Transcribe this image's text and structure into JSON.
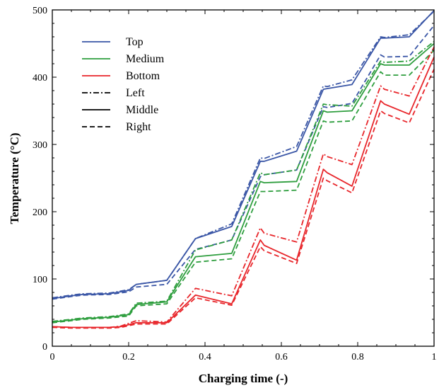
{
  "chart_data": {
    "type": "line",
    "xlabel": "Charging time (-)",
    "ylabel": "Temperature (°C)",
    "xlim": [
      0,
      1
    ],
    "ylim": [
      0,
      500
    ],
    "x_ticks": [
      "0",
      "0.2",
      "0.4",
      "0.6",
      "0.8",
      "1"
    ],
    "y_ticks": [
      "0",
      "100",
      "200",
      "300",
      "400",
      "500"
    ],
    "grid": false,
    "legend_position": "top-left",
    "legend": [
      {
        "label": "Top",
        "color": "#3a56a6",
        "dash": "solid"
      },
      {
        "label": "Medium",
        "color": "#2e9e3e",
        "dash": "solid"
      },
      {
        "label": "Bottom",
        "color": "#e8262b",
        "dash": "solid"
      },
      {
        "label": "Left",
        "color": "#000000",
        "dash": "dashdot"
      },
      {
        "label": "Middle",
        "color": "#000000",
        "dash": "solid"
      },
      {
        "label": "Right",
        "color": "#000000",
        "dash": "dashed"
      }
    ],
    "series": [
      {
        "name": "Top",
        "location": "Middle",
        "color": "#3a56a6",
        "dash": "solid",
        "x": [
          0,
          0.05,
          0.08,
          0.15,
          0.2,
          0.22,
          0.3,
          0.375,
          0.47,
          0.545,
          0.555,
          0.64,
          0.71,
          0.72,
          0.785,
          0.86,
          0.87,
          0.935,
          1
        ],
        "y": [
          71,
          75,
          77,
          78,
          83,
          92,
          98,
          160,
          178,
          275,
          275,
          290,
          382,
          383,
          389,
          458,
          458,
          460,
          499
        ]
      },
      {
        "name": "Top",
        "location": "Left",
        "color": "#3a56a6",
        "dash": "dashdot",
        "x": [
          0,
          0.05,
          0.08,
          0.15,
          0.2,
          0.22,
          0.3,
          0.375,
          0.47,
          0.545,
          0.555,
          0.64,
          0.71,
          0.72,
          0.785,
          0.86,
          0.87,
          0.935,
          1
        ],
        "y": [
          72,
          76,
          78,
          79,
          84,
          92,
          98,
          160,
          182,
          280,
          279,
          297,
          387,
          386,
          396,
          460,
          459,
          463,
          498
        ]
      },
      {
        "name": "Top",
        "location": "Right",
        "color": "#3a56a6",
        "dash": "dashed",
        "x": [
          0,
          0.05,
          0.08,
          0.15,
          0.2,
          0.22,
          0.3,
          0.375,
          0.47,
          0.545,
          0.555,
          0.64,
          0.71,
          0.72,
          0.785,
          0.86,
          0.87,
          0.935,
          1
        ],
        "y": [
          70,
          74,
          76,
          77,
          81,
          88,
          92,
          144,
          158,
          252,
          255,
          262,
          356,
          355,
          361,
          433,
          430,
          431,
          477
        ]
      },
      {
        "name": "Medium",
        "location": "Middle",
        "color": "#2e9e3e",
        "dash": "solid",
        "x": [
          0,
          0.05,
          0.08,
          0.15,
          0.2,
          0.22,
          0.3,
          0.375,
          0.47,
          0.545,
          0.555,
          0.64,
          0.71,
          0.72,
          0.785,
          0.86,
          0.87,
          0.935,
          1
        ],
        "y": [
          36,
          39,
          41,
          43,
          47,
          62,
          66,
          133,
          138,
          245,
          243,
          245,
          350,
          348,
          350,
          420,
          418,
          418,
          450
        ]
      },
      {
        "name": "Medium",
        "location": "Left",
        "color": "#2e9e3e",
        "dash": "dashdot",
        "x": [
          0,
          0.05,
          0.08,
          0.15,
          0.2,
          0.22,
          0.3,
          0.375,
          0.47,
          0.545,
          0.555,
          0.64,
          0.71,
          0.72,
          0.785,
          0.86,
          0.87,
          0.935,
          1
        ],
        "y": [
          37,
          40,
          42,
          44,
          48,
          64,
          67,
          143,
          158,
          258,
          255,
          262,
          360,
          359,
          357,
          424,
          422,
          424,
          453
        ]
      },
      {
        "name": "Medium",
        "location": "Right",
        "color": "#2e9e3e",
        "dash": "dashed",
        "x": [
          0,
          0.05,
          0.08,
          0.15,
          0.2,
          0.22,
          0.3,
          0.375,
          0.47,
          0.545,
          0.555,
          0.64,
          0.71,
          0.72,
          0.785,
          0.86,
          0.87,
          0.935,
          1
        ],
        "y": [
          35,
          38,
          40,
          42,
          45,
          60,
          63,
          125,
          130,
          230,
          230,
          232,
          335,
          333,
          335,
          408,
          403,
          403,
          440
        ]
      },
      {
        "name": "Bottom",
        "location": "Middle",
        "color": "#e8262b",
        "dash": "solid",
        "x": [
          0,
          0.05,
          0.1,
          0.15,
          0.18,
          0.22,
          0.3,
          0.375,
          0.47,
          0.545,
          0.555,
          0.64,
          0.71,
          0.72,
          0.785,
          0.86,
          0.87,
          0.935,
          1
        ],
        "y": [
          29,
          28,
          28,
          28,
          29,
          35,
          35,
          76,
          63,
          158,
          150,
          128,
          263,
          258,
          238,
          365,
          360,
          345,
          430
        ]
      },
      {
        "name": "Bottom",
        "location": "Left",
        "color": "#e8262b",
        "dash": "dashdot",
        "x": [
          0,
          0.05,
          0.1,
          0.15,
          0.18,
          0.22,
          0.3,
          0.375,
          0.47,
          0.545,
          0.555,
          0.64,
          0.71,
          0.72,
          0.785,
          0.86,
          0.87,
          0.935,
          1
        ],
        "y": [
          29,
          28,
          28,
          28,
          30,
          38,
          36,
          86,
          75,
          176,
          168,
          155,
          286,
          282,
          270,
          387,
          382,
          372,
          445
        ]
      },
      {
        "name": "Bottom",
        "location": "Right",
        "color": "#e8262b",
        "dash": "dashed",
        "x": [
          0,
          0.05,
          0.1,
          0.15,
          0.18,
          0.22,
          0.3,
          0.375,
          0.47,
          0.545,
          0.555,
          0.64,
          0.71,
          0.72,
          0.785,
          0.86,
          0.87,
          0.935,
          1
        ],
        "y": [
          28,
          27,
          27,
          27,
          28,
          33,
          33,
          72,
          61,
          148,
          142,
          123,
          250,
          246,
          228,
          350,
          346,
          332,
          412
        ]
      }
    ]
  }
}
